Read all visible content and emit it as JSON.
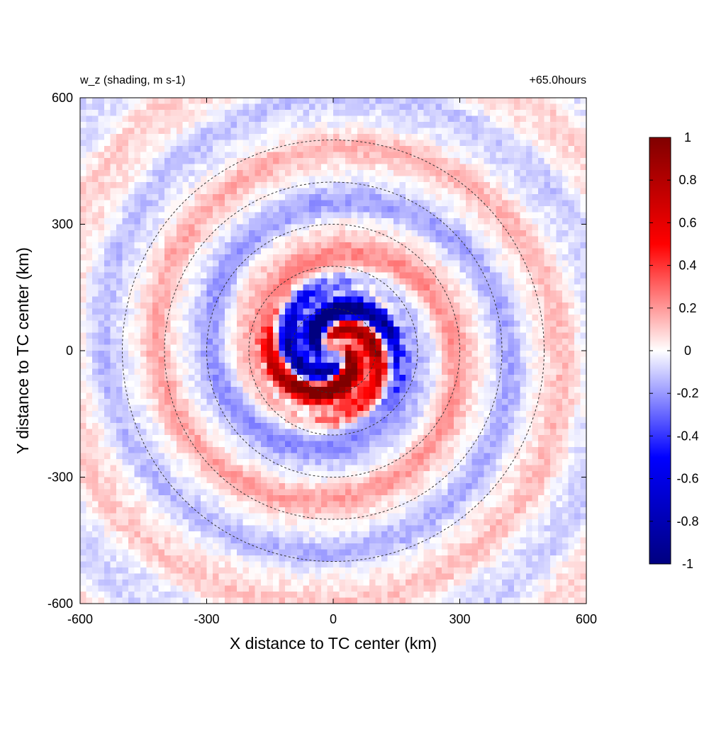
{
  "chart_data": {
    "type": "heatmap",
    "title_left": "w_z (shading, m s-1)",
    "title_right": "+65.0hours",
    "xlabel": "X distance to TC center (km)",
    "ylabel": "Y distance to TC center (km)",
    "xlim": [
      -600,
      600
    ],
    "ylim": [
      -600,
      600
    ],
    "x_ticks": [
      -600,
      -300,
      0,
      300,
      600
    ],
    "y_ticks": [
      -600,
      -300,
      0,
      300,
      600
    ],
    "range_rings_km": [
      100,
      200,
      300,
      400,
      500
    ],
    "range_ring_style": "dashed",
    "colorbar": {
      "min": -1,
      "max": 1,
      "ticks": [
        "1",
        "0.8",
        "0.6",
        "0.4",
        "0.2",
        "0",
        "-0.2",
        "-0.4",
        "-0.6",
        "-0.8",
        "-1"
      ],
      "colors": [
        "#000080",
        "#0000ff",
        "#ffffff",
        "#ff0000",
        "#800000"
      ],
      "placement": "right"
    },
    "field_description": "Spiral bands of alternating positive and negative vertical velocity around the TC center; strongest updrafts/downdrafts within ~150 km of center."
  }
}
